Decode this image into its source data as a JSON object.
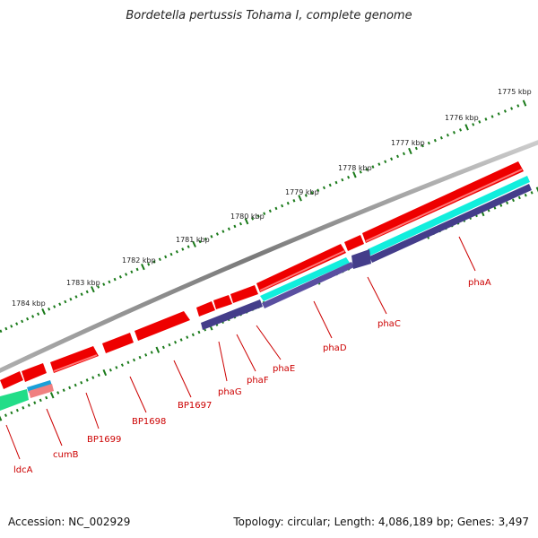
{
  "title": "Bordetella pertussis Tohama I, complete genome",
  "footer": {
    "accession": "Accession: NC_002929",
    "summary": "Topology: circular; Length: 4,086,189 bp; Genes: 3,497"
  },
  "colors": {
    "backbone": "#8a8a8a",
    "tick": "#1a7a1a",
    "gene_fill": "#ee0000",
    "gene_light": "#ff6666",
    "cyan": "#11eedd",
    "navy": "#443d8a",
    "label": "#cc0000"
  },
  "kbp_labels": [
    "1775 kbp",
    "1776 kbp",
    "1777 kbp",
    "1778 kbp",
    "1779 kbp",
    "1780 kbp",
    "1781 kbp",
    "1782 kbp",
    "1783 kbp",
    "1784 kbp"
  ],
  "genes": [
    "phaA",
    "phaC",
    "phaD",
    "phaE",
    "phaF",
    "phaG",
    "BP1697",
    "BP1698",
    "BP1699",
    "cumB",
    "ldcA"
  ]
}
